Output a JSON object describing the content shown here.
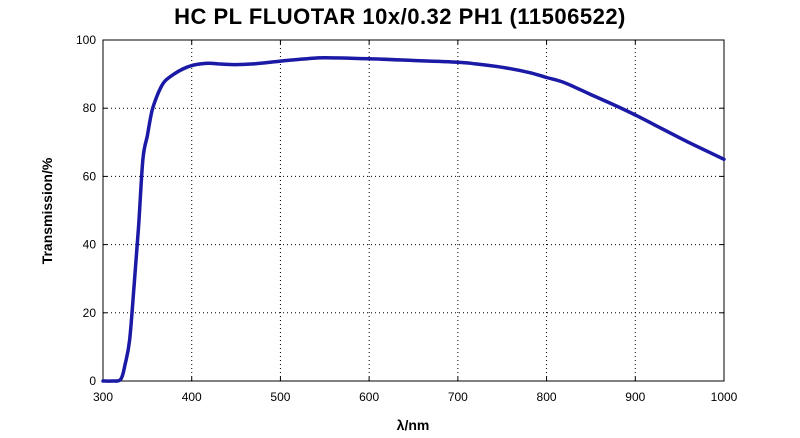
{
  "chart_data": {
    "type": "line",
    "title": "HC PL FLUOTAR 10x/0.32 PH1 (11506522)",
    "xlabel": "λ/nm",
    "ylabel": "Transmission/%",
    "xlim": [
      300,
      1000
    ],
    "ylim": [
      0,
      100
    ],
    "xticks": [
      300,
      400,
      500,
      600,
      700,
      800,
      900,
      1000
    ],
    "yticks": [
      0,
      20,
      40,
      60,
      80,
      100
    ],
    "grid": true,
    "line_color": "#1a1aa6",
    "series": [
      {
        "x": [
          300,
          310,
          320,
          325,
          330,
          335,
          340,
          345,
          350,
          355,
          360,
          365,
          370,
          380,
          390,
          400,
          410,
          420,
          430,
          450,
          470,
          500,
          530,
          550,
          600,
          650,
          700,
          720,
          750,
          780,
          800,
          820,
          850,
          880,
          900,
          930,
          960,
          1000
        ],
        "y": [
          0,
          0,
          0.5,
          5,
          12,
          28,
          45,
          65,
          72,
          79,
          83,
          86,
          88,
          90,
          91.5,
          92.5,
          93,
          93.2,
          93,
          92.8,
          93,
          93.8,
          94.5,
          94.8,
          94.5,
          94,
          93.5,
          93,
          92,
          90.5,
          89,
          87.5,
          84,
          80.5,
          78,
          74,
          70,
          65
        ]
      }
    ]
  }
}
